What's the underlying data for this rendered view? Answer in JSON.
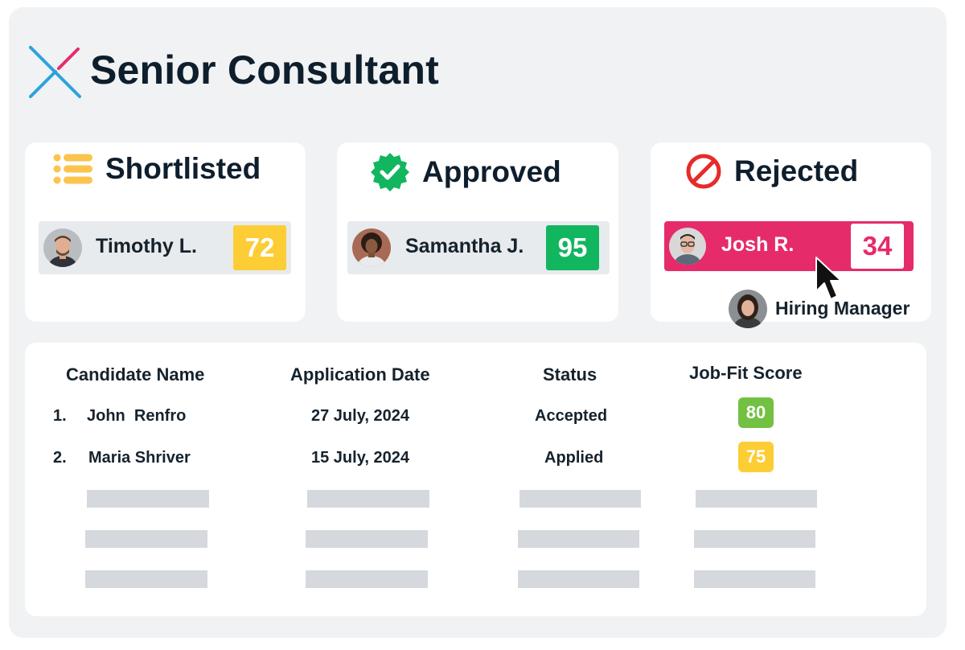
{
  "page": {
    "title": "Senior Consultant"
  },
  "colors": {
    "logo_blue": "#29a3dc",
    "logo_pink": "#e62b6a",
    "shortlisted_icon": "#fcc34d",
    "approved_icon": "#12b65f",
    "rejected_icon": "#e62b2b",
    "score_yellow": "#fccd34",
    "score_green": "#12b65f",
    "score_pink": "#e62b6a",
    "pill_green": "#72c142",
    "pill_yellow": "#fccd34"
  },
  "cards": [
    {
      "heading": "Shortlisted",
      "icon": "list-icon",
      "candidate": "Timothy L.",
      "score": "72"
    },
    {
      "heading": "Approved",
      "icon": "verified-badge-icon",
      "candidate": "Samantha J.",
      "score": "95"
    },
    {
      "heading": "Rejected",
      "icon": "prohibited-icon",
      "candidate": "Josh R.",
      "score": "34"
    }
  ],
  "hiring_manager": {
    "label": "Hiring Manager"
  },
  "table": {
    "headers": [
      "Candidate Name",
      "Application Date",
      "Status",
      "Job-Fit Score"
    ],
    "rows": [
      {
        "index": "1.",
        "name": "John  Renfro",
        "date": "27 July, 2024",
        "status": "Accepted",
        "score": "80"
      },
      {
        "index": "2.",
        "name": "Maria Shriver",
        "date": "15 July, 2024",
        "status": "Applied",
        "score": "75"
      }
    ]
  }
}
